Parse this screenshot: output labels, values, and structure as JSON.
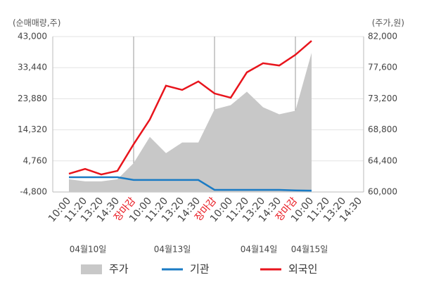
{
  "chart_data": {
    "type": "dual-axis",
    "y_axis_label": "(순매매량,주)",
    "y2_axis_label": "(주가,원)",
    "categories": [
      "10:00",
      "11:20",
      "13:20",
      "14:30",
      "장마감",
      "10:00",
      "11:20",
      "13:20",
      "14:30",
      "장마감",
      "10:00",
      "11:20",
      "13:20",
      "14:30",
      "장마감",
      "10:00",
      "11:20",
      "13:20",
      "14:30"
    ],
    "date_labels": [
      "04월10일",
      "04월13일",
      "04월14일",
      "04월15일"
    ],
    "ylim": [
      -4800,
      43000
    ],
    "yticks": [
      {
        "value": -4800,
        "label": "-4,800"
      },
      {
        "value": 4760,
        "label": "4,760"
      },
      {
        "value": 14320,
        "label": "14,320"
      },
      {
        "value": 23880,
        "label": "23,880"
      },
      {
        "value": 33440,
        "label": "33,440"
      },
      {
        "value": 43000,
        "label": "43,000"
      }
    ],
    "y2lim": [
      60000,
      82000
    ],
    "y2ticks": [
      {
        "value": 60000,
        "label": "60,000"
      },
      {
        "value": 64400,
        "label": "64,400"
      },
      {
        "value": 68800,
        "label": "68,800"
      },
      {
        "value": 73200,
        "label": "73,200"
      },
      {
        "value": 77600,
        "label": "77,600"
      },
      {
        "value": 82000,
        "label": "82,000"
      }
    ],
    "grid": true,
    "series": [
      {
        "name": "주가",
        "type": "area",
        "axis": "y2",
        "color": "#c8c8c8",
        "values": [
          61800,
          61500,
          61500,
          61800,
          64100,
          67800,
          65500,
          67000,
          67000,
          71700,
          72300,
          74200,
          72000,
          71000,
          71500,
          79700,
          null,
          null,
          null
        ]
      },
      {
        "name": "기관",
        "type": "line",
        "color": "#1a7bc4",
        "values": [
          -260,
          -260,
          -260,
          -260,
          -1100,
          -1100,
          -1100,
          -1100,
          -1100,
          -4150,
          -4150,
          -4150,
          -4150,
          -4150,
          -4300,
          -4400,
          null,
          null,
          null
        ]
      },
      {
        "name": "외국인",
        "type": "line",
        "color": "#e8141c",
        "values": [
          800,
          2300,
          600,
          1700,
          9900,
          17500,
          27900,
          26600,
          29200,
          25500,
          24200,
          32000,
          34800,
          34100,
          37400,
          41700,
          null,
          null,
          null
        ]
      }
    ]
  }
}
